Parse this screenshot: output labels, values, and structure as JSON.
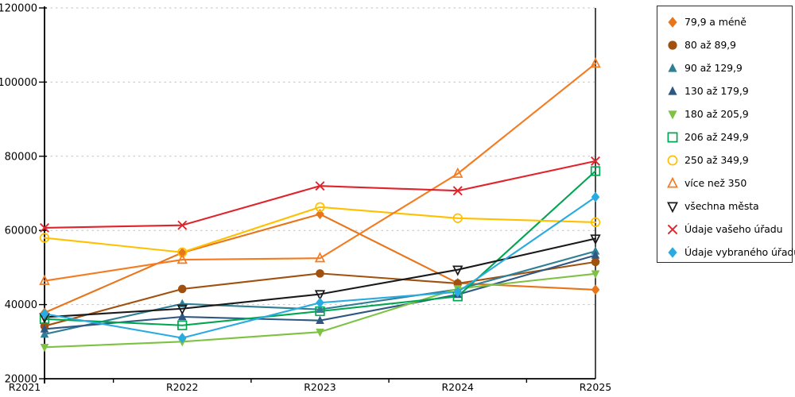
{
  "chart_data": {
    "type": "line",
    "title": "",
    "categories": [
      "R2021",
      "R2022",
      "R2023",
      "R2024",
      "R2025"
    ],
    "x_axis": {
      "tick_labels": [
        "R2021",
        "R2022",
        "R2023",
        "R2024",
        "R2025"
      ]
    },
    "y_axis": {
      "min": 20000,
      "max": 120000,
      "step": 20000,
      "tick_labels": [
        "20000",
        "40000",
        "60000",
        "80000",
        "100000",
        "120000"
      ]
    },
    "grid": {
      "horizontal": true,
      "style": "dashed",
      "color": "#c2c2c2"
    },
    "legend_position": "right",
    "series": [
      {
        "name": "79,9 a méně",
        "marker": "diamond",
        "style": "filled",
        "color": "#E8751A",
        "values": [
          37800,
          54000,
          64400,
          45800,
          44000
        ]
      },
      {
        "name": "80 až 89,9",
        "marker": "circle",
        "style": "filled",
        "color": "#A0510F",
        "values": [
          34200,
          44200,
          48400,
          45700,
          51500
        ]
      },
      {
        "name": "90 až 129,9",
        "marker": "triangle-up",
        "style": "filled",
        "color": "#2F7F95",
        "values": [
          32000,
          40200,
          38700,
          44100,
          54400
        ]
      },
      {
        "name": "130 až 179,9",
        "marker": "triangle-up",
        "style": "filled",
        "color": "#2F5782",
        "values": [
          33400,
          36700,
          35700,
          42700,
          53300
        ]
      },
      {
        "name": "180 až 205,9",
        "marker": "triangle-down",
        "style": "filled",
        "color": "#7DC242",
        "values": [
          28500,
          30000,
          32600,
          44300,
          48300
        ]
      },
      {
        "name": "206 až 249,9",
        "marker": "square",
        "style": "open",
        "color": "#00A651",
        "values": [
          36100,
          34400,
          38200,
          42200,
          76000
        ]
      },
      {
        "name": "250 až 349,9",
        "marker": "circle",
        "style": "open",
        "color": "#FFC000",
        "values": [
          58000,
          54100,
          66300,
          63300,
          62200
        ]
      },
      {
        "name": "více než 350",
        "marker": "triangle-up",
        "style": "open",
        "color": "#F47B20",
        "values": [
          46400,
          52100,
          52500,
          75300,
          105000
        ]
      },
      {
        "name": "všechna města",
        "marker": "triangle-down",
        "style": "open",
        "color": "#1A1A1A",
        "values": [
          36600,
          38900,
          42800,
          49400,
          57800
        ]
      },
      {
        "name": "Údaje vašeho úřadu",
        "marker": "x",
        "style": "stroke",
        "color": "#E0242C",
        "values": [
          60700,
          61400,
          72000,
          70700,
          78700
        ]
      },
      {
        "name": "Údaje vybraného úřadu",
        "marker": "diamond",
        "style": "filled",
        "color": "#29ABE2",
        "values": [
          37500,
          31000,
          40500,
          43400,
          69000
        ]
      }
    ]
  }
}
